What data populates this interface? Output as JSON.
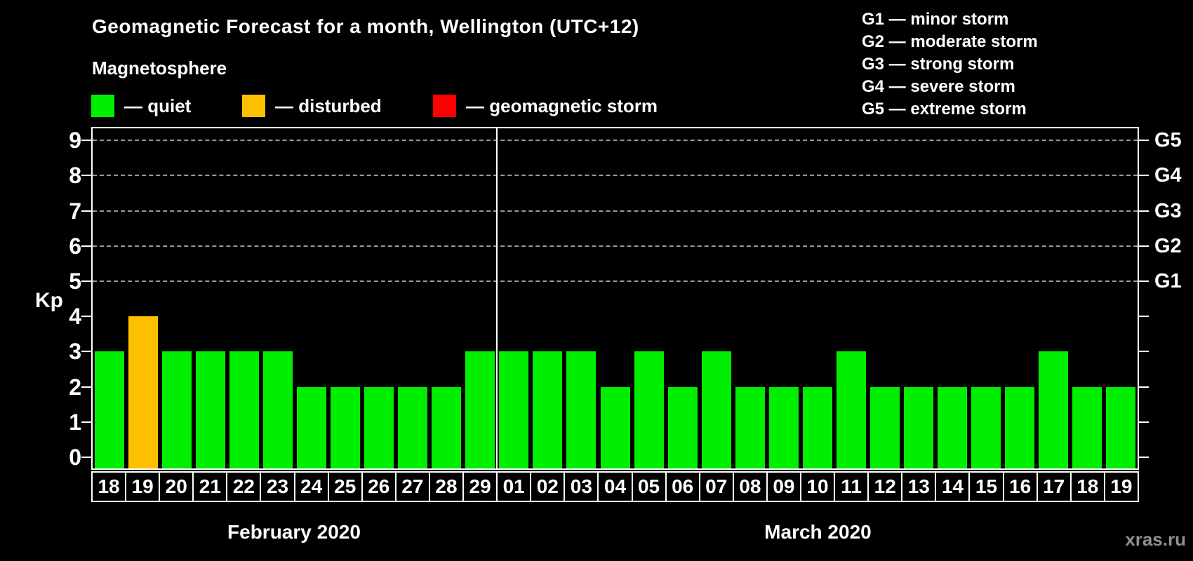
{
  "title": "Geomagnetic Forecast for a month, Wellington (UTC+12)",
  "subtitle": "Magnetosphere",
  "legend": [
    {
      "status": "quiet",
      "label": "— quiet",
      "color": "#00ee00"
    },
    {
      "status": "disturbed",
      "label": "— disturbed",
      "color": "#ffc000"
    },
    {
      "status": "storm",
      "label": "— geomagnetic storm",
      "color": "#ff0000"
    }
  ],
  "storm_scale": [
    {
      "code": "G1",
      "label": "G1 — minor storm",
      "kp": 5
    },
    {
      "code": "G2",
      "label": "G2 — moderate storm",
      "kp": 6
    },
    {
      "code": "G3",
      "label": "G3 — strong storm",
      "kp": 7
    },
    {
      "code": "G4",
      "label": "G4 — severe storm",
      "kp": 8
    },
    {
      "code": "G5",
      "label": "G5 — extreme storm",
      "kp": 9
    }
  ],
  "watermark": "xras.ru",
  "chart_data": {
    "type": "bar",
    "ylabel": "Kp",
    "ylim": [
      0,
      9
    ],
    "yticks": [
      0,
      1,
      2,
      3,
      4,
      5,
      6,
      7,
      8,
      9
    ],
    "gridlines_at_kp": [
      5,
      6,
      7,
      8,
      9
    ],
    "right_axis_ticks": [
      {
        "label": "G1",
        "kp": 5
      },
      {
        "label": "G2",
        "kp": 6
      },
      {
        "label": "G3",
        "kp": 7
      },
      {
        "label": "G4",
        "kp": 8
      },
      {
        "label": "G5",
        "kp": 9
      }
    ],
    "legend_position": "top",
    "grid": "dashed-horizontal-upper-half",
    "status_colors": {
      "quiet": "#00ee00",
      "disturbed": "#ffc000",
      "storm": "#ff0000"
    },
    "months": [
      {
        "label": "February 2020",
        "points": [
          {
            "day": "18",
            "kp": 3,
            "status": "quiet"
          },
          {
            "day": "19",
            "kp": 4,
            "status": "disturbed"
          },
          {
            "day": "20",
            "kp": 3,
            "status": "quiet"
          },
          {
            "day": "21",
            "kp": 3,
            "status": "quiet"
          },
          {
            "day": "22",
            "kp": 3,
            "status": "quiet"
          },
          {
            "day": "23",
            "kp": 3,
            "status": "quiet"
          },
          {
            "day": "24",
            "kp": 2,
            "status": "quiet"
          },
          {
            "day": "25",
            "kp": 2,
            "status": "quiet"
          },
          {
            "day": "26",
            "kp": 2,
            "status": "quiet"
          },
          {
            "day": "27",
            "kp": 2,
            "status": "quiet"
          },
          {
            "day": "28",
            "kp": 2,
            "status": "quiet"
          },
          {
            "day": "29",
            "kp": 3,
            "status": "quiet"
          }
        ]
      },
      {
        "label": "March 2020",
        "points": [
          {
            "day": "01",
            "kp": 3,
            "status": "quiet"
          },
          {
            "day": "02",
            "kp": 3,
            "status": "quiet"
          },
          {
            "day": "03",
            "kp": 3,
            "status": "quiet"
          },
          {
            "day": "04",
            "kp": 2,
            "status": "quiet"
          },
          {
            "day": "05",
            "kp": 3,
            "status": "quiet"
          },
          {
            "day": "06",
            "kp": 2,
            "status": "quiet"
          },
          {
            "day": "07",
            "kp": 3,
            "status": "quiet"
          },
          {
            "day": "08",
            "kp": 2,
            "status": "quiet"
          },
          {
            "day": "09",
            "kp": 2,
            "status": "quiet"
          },
          {
            "day": "10",
            "kp": 2,
            "status": "quiet"
          },
          {
            "day": "11",
            "kp": 3,
            "status": "quiet"
          },
          {
            "day": "12",
            "kp": 2,
            "status": "quiet"
          },
          {
            "day": "13",
            "kp": 2,
            "status": "quiet"
          },
          {
            "day": "14",
            "kp": 2,
            "status": "quiet"
          },
          {
            "day": "15",
            "kp": 2,
            "status": "quiet"
          },
          {
            "day": "16",
            "kp": 2,
            "status": "quiet"
          },
          {
            "day": "17",
            "kp": 3,
            "status": "quiet"
          },
          {
            "day": "18",
            "kp": 2,
            "status": "quiet"
          },
          {
            "day": "19",
            "kp": 2,
            "status": "quiet"
          }
        ]
      }
    ]
  }
}
